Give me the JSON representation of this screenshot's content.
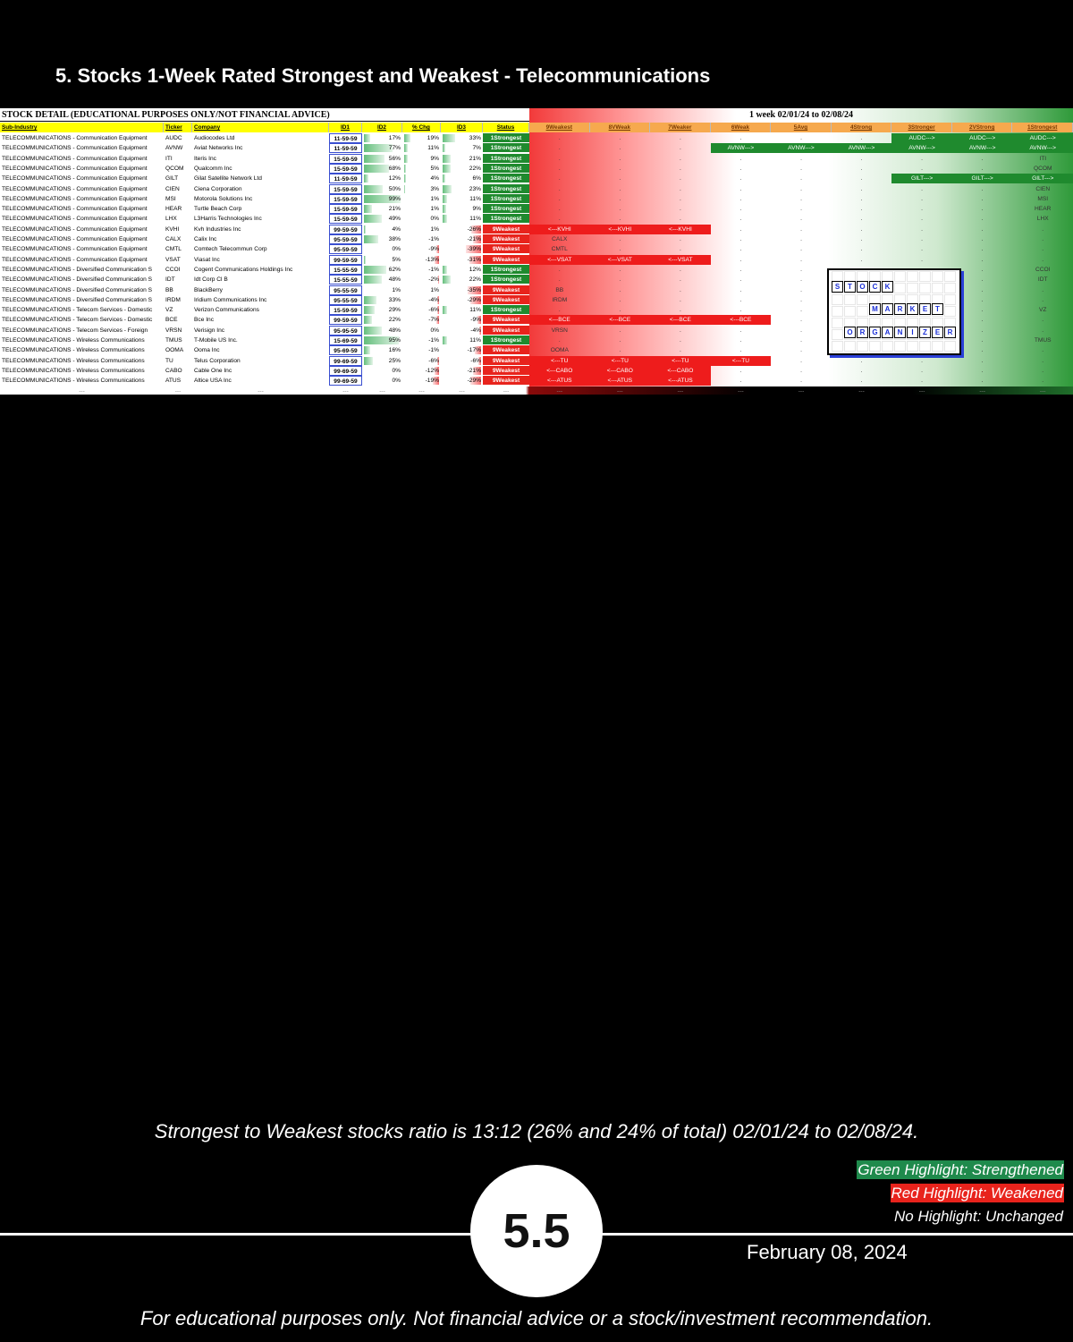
{
  "header": {
    "title": "5. Stocks 1-Week Rated Strongest and Weakest - Telecommunications"
  },
  "table": {
    "caption": "STOCK DETAIL (EDUCATIONAL PURPOSES ONLY/NOT FINANCIAL ADVICE)",
    "period": "1 week 02/01/24 to 02/08/24",
    "columns": [
      "Sub-Industry",
      "Ticker",
      "Company",
      "ID1",
      "ID2",
      "% Chg",
      "ID3",
      "Status",
      "9Weakest",
      "8VWeak",
      "7Weaker",
      "6Weak",
      "5Avg",
      "4Strong",
      "3Stronger",
      "2VStrong",
      "1Strongest"
    ],
    "status_colors": {
      "1Strongest": "#1f8a2e",
      "9Weakest": "#e8231c"
    },
    "rows": [
      [
        "TELECOMMUNICATIONS - Communication Equipment",
        "AUDC",
        "Audiocodes Ltd",
        "11-59-59",
        "17%",
        "19%",
        "33%",
        "1Strongest",
        ".",
        ".",
        ".",
        ".",
        ".",
        ".",
        "AUDC--->",
        "AUDC--->",
        "AUDC--->"
      ],
      [
        "TELECOMMUNICATIONS - Communication Equipment",
        "AVNW",
        "Aviat Networks Inc",
        "11-59-59",
        "77%",
        "11%",
        "7%",
        "1Strongest",
        ".",
        ".",
        ".",
        "AVNW--->",
        "AVNW--->",
        "AVNW--->",
        "AVNW--->",
        "AVNW--->",
        "AVNW--->"
      ],
      [
        "TELECOMMUNICATIONS - Communication Equipment",
        "ITI",
        "Iteris Inc",
        "15-59-59",
        "56%",
        "9%",
        "21%",
        "1Strongest",
        ".",
        ".",
        ".",
        ".",
        ".",
        ".",
        ".",
        ".",
        "ITI"
      ],
      [
        "TELECOMMUNICATIONS - Communication Equipment",
        "QCOM",
        "Qualcomm Inc",
        "15-59-59",
        "68%",
        "5%",
        "22%",
        "1Strongest",
        ".",
        ".",
        ".",
        ".",
        ".",
        ".",
        ".",
        ".",
        "QCOM"
      ],
      [
        "TELECOMMUNICATIONS - Communication Equipment",
        "GILT",
        "Gilat Satellite Network Ltd",
        "11-59-59",
        "12%",
        "4%",
        "6%",
        "1Strongest",
        ".",
        ".",
        ".",
        ".",
        ".",
        ".",
        "GILT--->",
        "GILT--->",
        "GILT--->"
      ],
      [
        "TELECOMMUNICATIONS - Communication Equipment",
        "CIEN",
        "Ciena Corporation",
        "15-59-59",
        "50%",
        "3%",
        "23%",
        "1Strongest",
        ".",
        ".",
        ".",
        ".",
        ".",
        ".",
        ".",
        ".",
        "CIEN"
      ],
      [
        "TELECOMMUNICATIONS - Communication Equipment",
        "MSI",
        "Motorola Solutions Inc",
        "15-59-59",
        "99%",
        "1%",
        "11%",
        "1Strongest",
        ".",
        ".",
        ".",
        ".",
        ".",
        ".",
        ".",
        ".",
        "MSI"
      ],
      [
        "TELECOMMUNICATIONS - Communication Equipment",
        "HEAR",
        "Turtle Beach Corp",
        "15-59-59",
        "21%",
        "1%",
        "9%",
        "1Strongest",
        ".",
        ".",
        ".",
        ".",
        ".",
        ".",
        ".",
        ".",
        "HEAR"
      ],
      [
        "TELECOMMUNICATIONS - Communication Equipment",
        "LHX",
        "L3Harris Technologies Inc",
        "15-59-59",
        "49%",
        "0%",
        "11%",
        "1Strongest",
        ".",
        ".",
        ".",
        ".",
        ".",
        ".",
        ".",
        ".",
        "LHX"
      ],
      [
        "TELECOMMUNICATIONS - Communication Equipment",
        "KVHI",
        "Kvh Industries Inc",
        "99-59-59",
        "4%",
        "1%",
        "-26%",
        "9Weakest",
        "<---KVHI",
        "<---KVHI",
        "<---KVHI",
        ".",
        ".",
        ".",
        ".",
        ".",
        "."
      ],
      [
        "TELECOMMUNICATIONS - Communication Equipment",
        "CALX",
        "Calix Inc",
        "95-59-59",
        "38%",
        "-1%",
        "-21%",
        "9Weakest",
        "CALX",
        ".",
        ".",
        ".",
        ".",
        ".",
        ".",
        ".",
        "."
      ],
      [
        "TELECOMMUNICATIONS - Communication Equipment",
        "CMTL",
        "Comtech Telecommun Corp",
        "95-59-59",
        "0%",
        "-9%",
        "-39%",
        "9Weakest",
        "CMTL",
        ".",
        ".",
        ".",
        ".",
        ".",
        ".",
        ".",
        "."
      ],
      [
        "TELECOMMUNICATIONS - Communication Equipment",
        "VSAT",
        "Viasat Inc",
        "99-59-59",
        "5%",
        "-13%",
        "-31%",
        "9Weakest",
        "<---VSAT",
        "<---VSAT",
        "<---VSAT",
        ".",
        ".",
        ".",
        ".",
        ".",
        "."
      ],
      [
        "TELECOMMUNICATIONS - Diversified Communication S",
        "CCOI",
        "Cogent Communications Holdings Inc",
        "15-55-59",
        "62%",
        "-1%",
        "12%",
        "1Strongest",
        ".",
        ".",
        ".",
        ".",
        ".",
        ".",
        ".",
        ".",
        "CCOI"
      ],
      [
        "TELECOMMUNICATIONS - Diversified Communication S",
        "IDT",
        "Idt Corp Cl B",
        "15-55-59",
        "48%",
        "-2%",
        "22%",
        "1Strongest",
        ".",
        ".",
        ".",
        ".",
        ".",
        ".",
        ".",
        ".",
        "IDT"
      ],
      [
        "TELECOMMUNICATIONS - Diversified Communication S",
        "BB",
        "BlackBerry",
        "95-55-59",
        "1%",
        "1%",
        "-35%",
        "9Weakest",
        "BB",
        ".",
        ".",
        ".",
        ".",
        ".",
        ".",
        ".",
        "."
      ],
      [
        "TELECOMMUNICATIONS - Diversified Communication S",
        "IRDM",
        "Iridium Communications Inc",
        "95-55-59",
        "33%",
        "-4%",
        "-29%",
        "9Weakest",
        "IRDM",
        ".",
        ".",
        ".",
        ".",
        ".",
        ".",
        ".",
        "."
      ],
      [
        "TELECOMMUNICATIONS - Telecom Services - Domestic",
        "VZ",
        "Verizon Communications",
        "15-59-59",
        "29%",
        "-6%",
        "11%",
        "1Strongest",
        ".",
        ".",
        ".",
        ".",
        ".",
        ".",
        ".",
        ".",
        "VZ"
      ],
      [
        "TELECOMMUNICATIONS - Telecom Services - Domestic",
        "BCE",
        "Bce Inc",
        "99-59-59",
        "22%",
        "-7%",
        "-9%",
        "9Weakest",
        "<---BCE",
        "<---BCE",
        "<---BCE",
        "<---BCE",
        ".",
        ".",
        ".",
        ".",
        "."
      ],
      [
        "TELECOMMUNICATIONS - Telecom Services - Foreign",
        "VRSN",
        "Verisign Inc",
        "95-95-59",
        "48%",
        "0%",
        "-4%",
        "9Weakest",
        "VRSN",
        ".",
        ".",
        ".",
        ".",
        ".",
        ".",
        ".",
        "."
      ],
      [
        "TELECOMMUNICATIONS - Wireless Communications",
        "TMUS",
        "T-Mobile US Inc.",
        "15-69-59",
        "95%",
        "-1%",
        "11%",
        "1Strongest",
        ".",
        ".",
        ".",
        ".",
        ".",
        ".",
        ".",
        ".",
        "TMUS"
      ],
      [
        "TELECOMMUNICATIONS - Wireless Communications",
        "OOMA",
        "Ooma Inc",
        "95-69-59",
        "16%",
        "-1%",
        "-17%",
        "9Weakest",
        "OOMA",
        ".",
        ".",
        ".",
        ".",
        ".",
        ".",
        ".",
        "."
      ],
      [
        "TELECOMMUNICATIONS - Wireless Communications",
        "TU",
        "Telus Corporation",
        "99-69-59",
        "25%",
        "-6%",
        "-6%",
        "9Weakest",
        "<---TU",
        "<---TU",
        "<---TU",
        "<---TU",
        ".",
        ".",
        ".",
        ".",
        "."
      ],
      [
        "TELECOMMUNICATIONS - Wireless Communications",
        "CABO",
        "Cable One Inc",
        "99-69-59",
        "0%",
        "-12%",
        "-21%",
        "9Weakest",
        "<---CABO",
        "<---CABO",
        "<---CABO",
        ".",
        ".",
        ".",
        ".",
        ".",
        "."
      ],
      [
        "TELECOMMUNICATIONS - Wireless Communications",
        "ATUS",
        "Altice USA Inc",
        "99-69-59",
        "0%",
        "-19%",
        "-29%",
        "9Weakest",
        "<---ATUS",
        "<---ATUS",
        "<---ATUS",
        ".",
        ".",
        ".",
        ".",
        ".",
        "."
      ]
    ],
    "footer": "---"
  },
  "logo": [
    "STOCK",
    "MARKET",
    "ORGANIZER"
  ],
  "summary": "Strongest to Weakest stocks ratio is 13:12 (26% and 24% of total) 02/01/24 to 02/08/24.",
  "legend": [
    "Green Highlight: Strengthened",
    "Red Highlight: Weakened",
    "No Highlight: Unchanged"
  ],
  "page_number": "5.5",
  "date": "February 08, 2024",
  "disclaimer": "For educational purposes only. Not financial advice or a stock/investment recommendation."
}
